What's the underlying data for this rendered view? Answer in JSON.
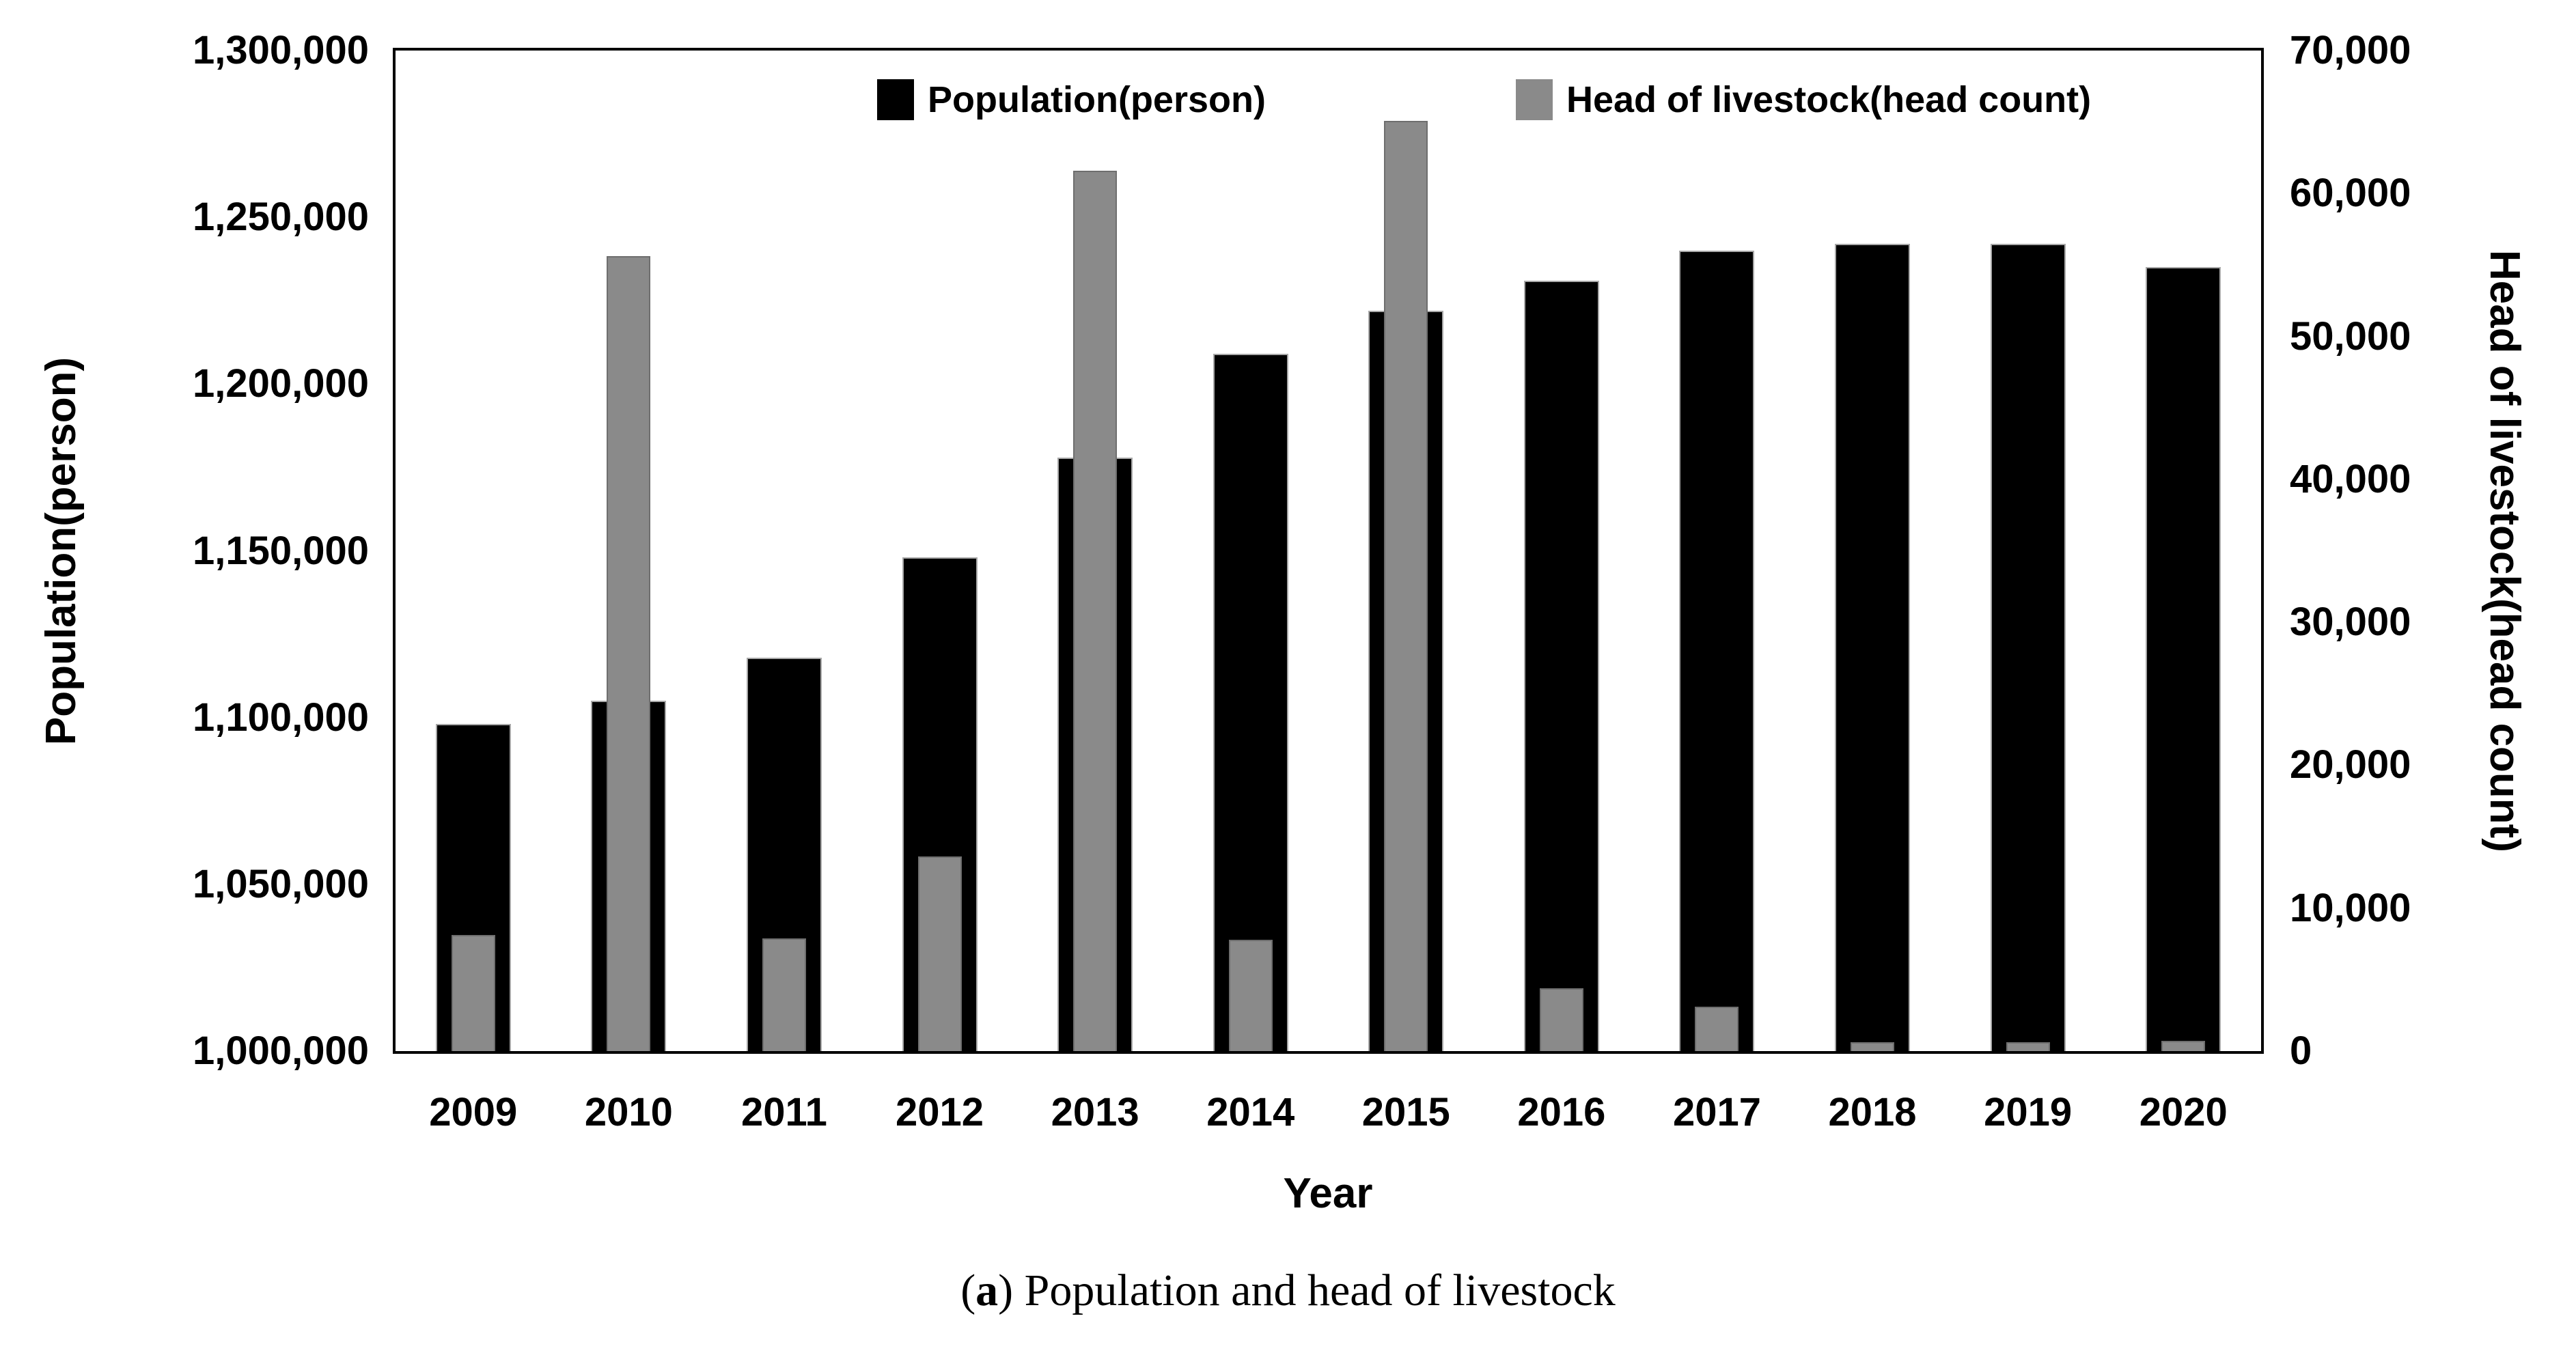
{
  "figure": {
    "legend": [
      {
        "label": "Population(person)",
        "color": "#000000"
      },
      {
        "label": "Head of livestock(head count)",
        "color": "#8a8a8a"
      }
    ],
    "caption": {
      "open": "(",
      "letter": "a",
      "rest": ") Population and head of livestock"
    }
  },
  "chart_data": {
    "type": "bar",
    "title": "",
    "categories": [
      "2009",
      "2010",
      "2011",
      "2012",
      "2013",
      "2014",
      "2015",
      "2016",
      "2017",
      "2018",
      "2019",
      "2020"
    ],
    "series": [
      {
        "name": "Population(person)",
        "axis": "left",
        "color": "#000000",
        "values": [
          1098000,
          1105000,
          1118000,
          1148000,
          1178000,
          1209000,
          1222000,
          1231000,
          1240000,
          1242000,
          1242000,
          1235000
        ]
      },
      {
        "name": "Head of livestock(head count)",
        "axis": "right",
        "color": "#8a8a8a",
        "values": [
          8100,
          55600,
          7900,
          13600,
          61600,
          7800,
          65100,
          4400,
          3100,
          600,
          600,
          700
        ]
      }
    ],
    "xlabel": "Year",
    "ylabel_left": "Population(person)",
    "ylabel_right": "Head of livestock(head count)",
    "left_axis": {
      "min": 1000000,
      "max": 1300000,
      "ticks": [
        "1,300,000",
        "1,250,000",
        "1,200,000",
        "1,150,000",
        "1,100,000",
        "1,050,000",
        "1,000,000"
      ]
    },
    "right_axis": {
      "min": 0,
      "max": 70000,
      "ticks": [
        "70,000",
        "60,000",
        "50,000",
        "40,000",
        "30,000",
        "20,000",
        "10,000",
        "0"
      ]
    },
    "grid": false,
    "legend_position": "top-inside"
  }
}
